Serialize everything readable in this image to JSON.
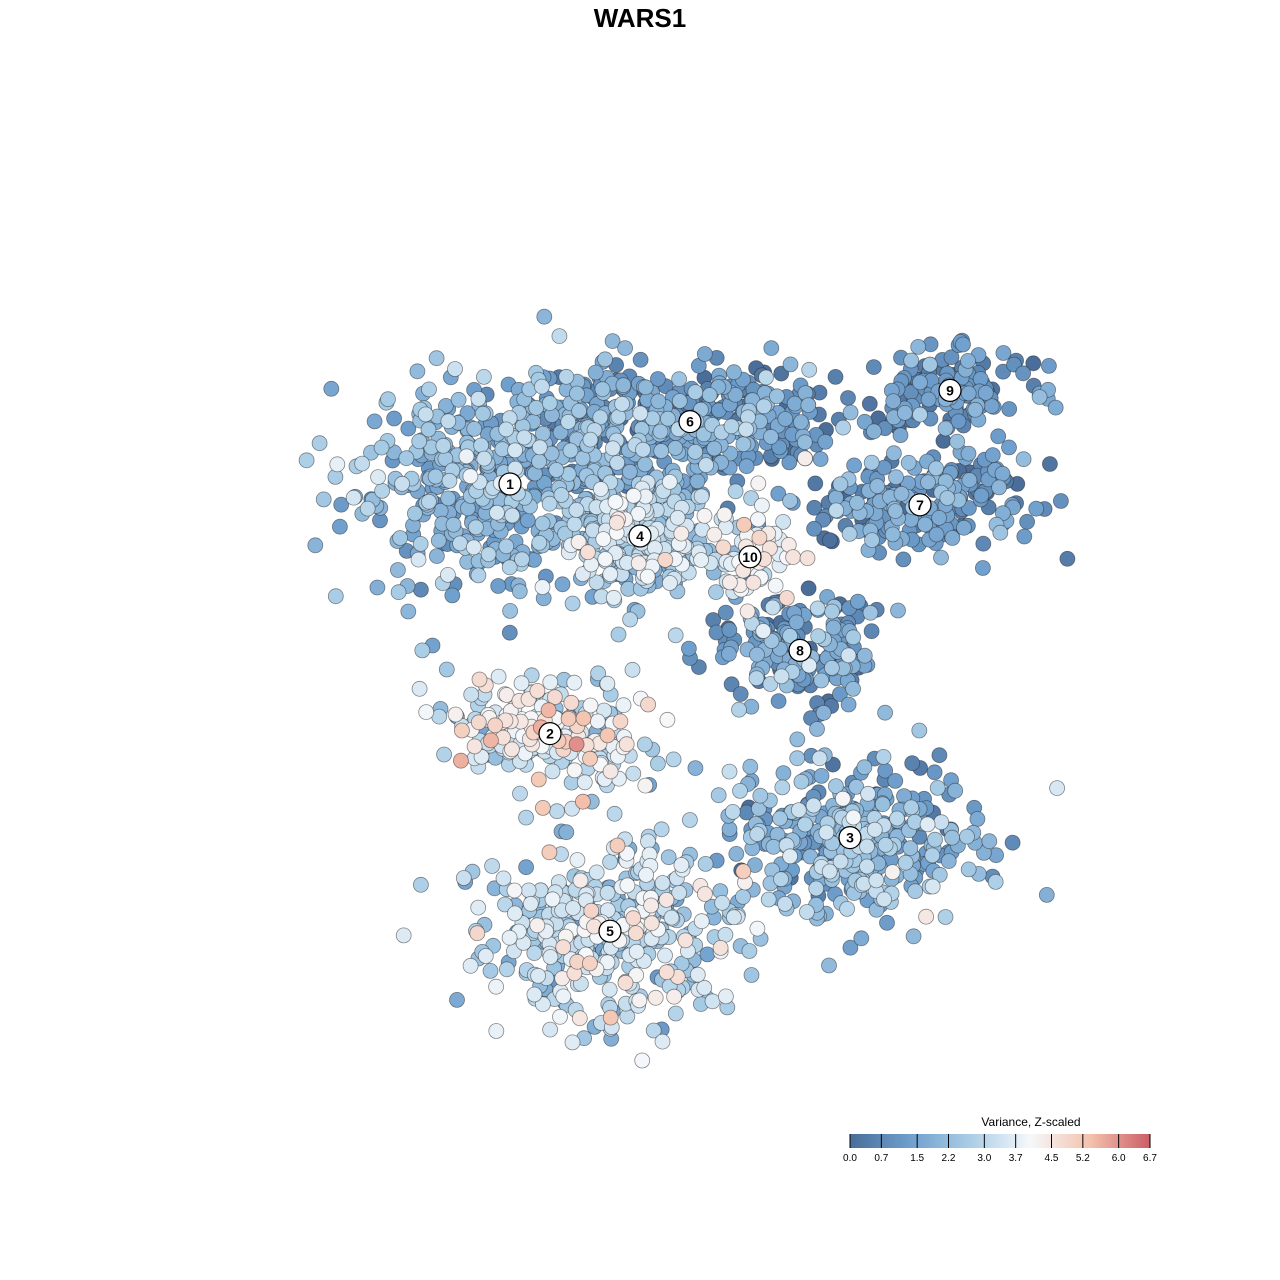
{
  "chart_data": {
    "type": "scatter",
    "title": "WARS1",
    "xlabel": "",
    "ylabel": "",
    "grid": false,
    "legend_placement": "bottom-right",
    "legend": {
      "title": "Variance, Z-scaled",
      "ticks": [
        "0.0",
        "0.7",
        "1.5",
        "2.2",
        "3.0",
        "3.7",
        "4.5",
        "5.2",
        "6.0",
        "6.7"
      ],
      "range": [
        0.0,
        6.7
      ],
      "colors": [
        "#4a6d99",
        "#6f9fcd",
        "#a9cde6",
        "#f5f8fb",
        "#f4c2ad",
        "#cc5d67"
      ]
    },
    "clusters": [
      {
        "label": "1",
        "x": 0.35,
        "y": 0.65,
        "value": 2.0,
        "spread": 0.7
      },
      {
        "label": "2",
        "x": 0.39,
        "y": 0.41,
        "value": 3.5,
        "spread": 0.9
      },
      {
        "label": "3",
        "x": 0.69,
        "y": 0.31,
        "value": 2.0,
        "spread": 0.8
      },
      {
        "label": "4",
        "x": 0.48,
        "y": 0.6,
        "value": 2.7,
        "spread": 0.9
      },
      {
        "label": "5",
        "x": 0.45,
        "y": 0.22,
        "value": 3.0,
        "spread": 0.8
      },
      {
        "label": "6",
        "x": 0.53,
        "y": 0.71,
        "value": 1.3,
        "spread": 0.8
      },
      {
        "label": "7",
        "x": 0.76,
        "y": 0.63,
        "value": 1.2,
        "spread": 0.7
      },
      {
        "label": "8",
        "x": 0.64,
        "y": 0.49,
        "value": 1.5,
        "spread": 0.8
      },
      {
        "label": "9",
        "x": 0.79,
        "y": 0.74,
        "value": 1.1,
        "spread": 0.6
      },
      {
        "label": "10",
        "x": 0.59,
        "y": 0.58,
        "value": 3.8,
        "spread": 0.7
      }
    ],
    "xlim": [
      0,
      1
    ],
    "ylim": [
      0,
      1
    ]
  }
}
